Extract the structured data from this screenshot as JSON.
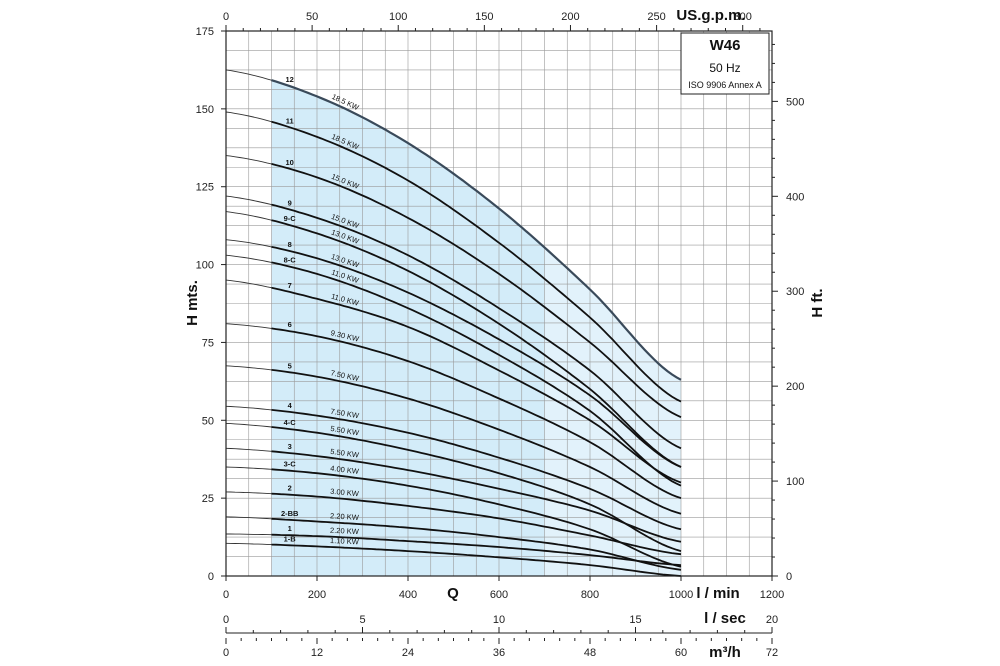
{
  "chart_data": {
    "type": "line",
    "title": "W46",
    "subtitle": "50 Hz",
    "standard": "ISO 9906 Annex A",
    "xlabel": "Q",
    "x_unit": "l / min",
    "xlim": [
      0,
      1200
    ],
    "x_ticks": [
      0,
      200,
      400,
      600,
      800,
      1000,
      1200
    ],
    "ylabel": "H mts.",
    "ylim": [
      0,
      175
    ],
    "y_ticks": [
      0,
      25,
      50,
      75,
      100,
      125,
      150,
      175
    ],
    "ylabel_right": "H ft.",
    "y_right_ticks": [
      0,
      100,
      200,
      300,
      400,
      500
    ],
    "top_axis": {
      "label": "US.g.p.m.",
      "ticks": [
        0,
        50,
        100,
        150,
        200,
        250,
        300
      ]
    },
    "bottom_axes": [
      {
        "label": "l / sec",
        "ticks": [
          0,
          5,
          10,
          15,
          20
        ]
      },
      {
        "label": "m³/h",
        "ticks": [
          0,
          12,
          24,
          36,
          48,
          60,
          72
        ]
      }
    ],
    "grid": true,
    "operating_range": [
      100,
      700
    ],
    "series": [
      {
        "name": "12",
        "power": "18.5 KW",
        "x": [
          0,
          200,
          400,
          600,
          800,
          1000
        ],
        "y": [
          162.5,
          154,
          139,
          118,
          92,
          63
        ]
      },
      {
        "name": "11",
        "power": "18.5 KW",
        "x": [
          0,
          200,
          400,
          600,
          800,
          1000
        ],
        "y": [
          149,
          141,
          127,
          107,
          83,
          56
        ]
      },
      {
        "name": "10",
        "power": "15.0 KW",
        "x": [
          0,
          200,
          400,
          600,
          800,
          1000
        ],
        "y": [
          135,
          128,
          115,
          97,
          75,
          51
        ]
      },
      {
        "name": "9",
        "power": "15.0 KW",
        "x": [
          0,
          200,
          400,
          600,
          800,
          1000
        ],
        "y": [
          122,
          115,
          103,
          86,
          66,
          41
        ]
      },
      {
        "name": "9-C",
        "power": "13.0 KW",
        "x": [
          0,
          200,
          400,
          600,
          800,
          1000
        ],
        "y": [
          117,
          110,
          98,
          81,
          60,
          35
        ]
      },
      {
        "name": "8",
        "power": "13.0 KW",
        "x": [
          0,
          200,
          400,
          600,
          800,
          1000
        ],
        "y": [
          108,
          102,
          91,
          76,
          58,
          35
        ]
      },
      {
        "name": "8-C",
        "power": "11.0 KW",
        "x": [
          0,
          200,
          400,
          600,
          800,
          1000
        ],
        "y": [
          103,
          97,
          86,
          71,
          53,
          29
        ]
      },
      {
        "name": "7",
        "power": "11.0 KW",
        "x": [
          0,
          200,
          400,
          600,
          800,
          1000
        ],
        "y": [
          95,
          89,
          80,
          66,
          50,
          30
        ]
      },
      {
        "name": "6",
        "power": "9.30 KW",
        "x": [
          0,
          200,
          400,
          600,
          800,
          1000
        ],
        "y": [
          81,
          77,
          69,
          57,
          43,
          25
        ]
      },
      {
        "name": "5",
        "power": "7.50 KW",
        "x": [
          0,
          200,
          400,
          600,
          800,
          1000
        ],
        "y": [
          67.5,
          64,
          57,
          47,
          35,
          20
        ]
      },
      {
        "name": "4",
        "power": "7.50 KW",
        "x": [
          0,
          200,
          400,
          600,
          800,
          1000
        ],
        "y": [
          54.5,
          51.5,
          46,
          38,
          28,
          15
        ]
      },
      {
        "name": "4-C",
        "power": "5.50 KW",
        "x": [
          0,
          200,
          400,
          600,
          800,
          1000
        ],
        "y": [
          49,
          46,
          40.5,
          33,
          23,
          8
        ]
      },
      {
        "name": "3",
        "power": "5.50 KW",
        "x": [
          0,
          200,
          400,
          600,
          800,
          1000
        ],
        "y": [
          41,
          38.5,
          34,
          28,
          21,
          11
        ]
      },
      {
        "name": "3-C",
        "power": "4.00 KW",
        "x": [
          0,
          200,
          400,
          600,
          800,
          1000
        ],
        "y": [
          35,
          33,
          29,
          23,
          15,
          3
        ]
      },
      {
        "name": "2",
        "power": "3.00 KW",
        "x": [
          0,
          200,
          400,
          600,
          800,
          1000
        ],
        "y": [
          27,
          25.5,
          22.5,
          18.5,
          13,
          7
        ]
      },
      {
        "name": "2-BB",
        "power": "2.20 KW",
        "x": [
          0,
          200,
          400,
          600,
          800,
          1000
        ],
        "y": [
          19,
          17.5,
          15.5,
          12.5,
          8.5,
          2
        ]
      },
      {
        "name": "1",
        "power": "2.20 KW",
        "x": [
          0,
          200,
          400,
          600,
          800,
          1000
        ],
        "y": [
          13.5,
          12.8,
          11.2,
          9.3,
          6.7,
          3.5
        ]
      },
      {
        "name": "1-B",
        "power": "1.10 KW",
        "x": [
          0,
          200,
          400,
          600,
          800,
          1000
        ],
        "y": [
          10.5,
          9.5,
          8,
          6,
          3.5,
          0
        ]
      }
    ]
  }
}
